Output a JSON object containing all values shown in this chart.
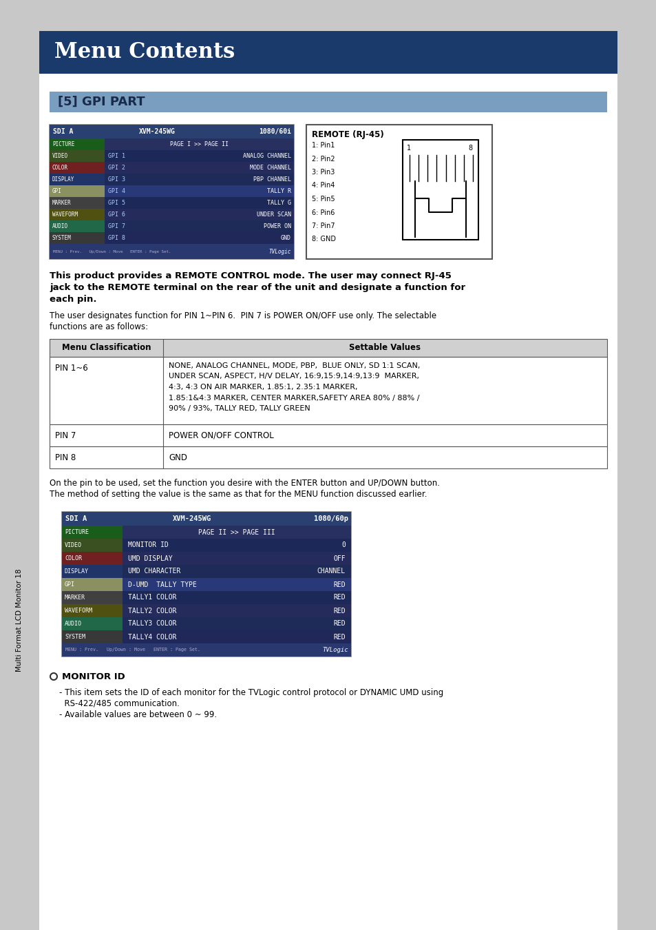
{
  "page_bg": "#c8c8c8",
  "content_bg": "#ffffff",
  "header_bg": "#1a3a6b",
  "header_text": "Menu Contents",
  "header_text_color": "#ffffff",
  "section_bg": "#7a9ec0",
  "section_text": "[5] GPI PART",
  "section_text_color": "#1a2a4a",
  "sidebar_text": "Multi Format LCD Monitor 18",
  "bold_para_line1": "This product provides a REMOTE CONTROL mode. The user may connect RJ-45",
  "bold_para_line2": "jack to the REMOTE terminal on the rear of the unit and designate a function for",
  "bold_para_line3": "each pin.",
  "normal_para1_line1": "The user designates function for PIN 1~PIN 6.  PIN 7 is POWER ON/OFF use only. The selectable",
  "normal_para1_line2": "functions are as follows:",
  "normal_para2_line1": "On the pin to be used, set the function you desire with the ENTER button and UP/DOWN button.",
  "normal_para2_line2": "The method of setting the value is the same as that for the MENU function discussed earlier.",
  "bullet_title": "MONITOR ID",
  "bullet_line1": "- This item sets the ID of each monitor for the TVLogic control protocol or DYNAMIC UMD using",
  "bullet_line2": "  RS-422/485 communication.",
  "bullet_line3": "- Available values are between 0 ~ 99.",
  "table_header": [
    "Menu Classification",
    "Settable Values"
  ],
  "table_row1_col1": "PIN 1~6",
  "table_row1_col2_lines": [
    "NONE, ANALOG CHANNEL, MODE, PBP,  BLUE ONLY, SD 1:1 SCAN,",
    "UNDER SCAN, ASPECT, H/V DELAY, 16:9,15:9,14:9,13:9  MARKER,",
    "4:3, 4:3 ON AIR MARKER, 1.85:1, 2.35:1 MARKER,",
    "1.85:1&4:3 MARKER, CENTER MARKER,SAFETY AREA 80% / 88% /",
    "90% / 93%, TALLY RED, TALLY GREEN"
  ],
  "table_row2_col1": "PIN 7",
  "table_row2_col2": "POWER ON/OFF CONTROL",
  "table_row3_col1": "PIN 8",
  "table_row3_col2": "GND",
  "remote_label": "REMOTE (RJ-45)",
  "remote_pins": [
    "1: Pin1",
    "2: Pin2",
    "3: Pin3",
    "4: Pin4",
    "5: Pin5",
    "6: Pin6",
    "7: Pin7",
    "8: GND"
  ],
  "scr1_sidebar_labels": [
    "PICTURE",
    "VIDEO",
    "COLOR",
    "DISPLAY",
    "GPI",
    "MARKER",
    "WAVEFORM",
    "AUDIO",
    "SYSTEM"
  ],
  "scr1_sidebar_colors": [
    "#1a5c1a",
    "#3a5020",
    "#702020",
    "#203468",
    "#556010",
    "#404040",
    "#505010",
    "#206848",
    "#383838"
  ],
  "scr1_gpi_labels": [
    "",
    "GPI 1",
    "GPI 2",
    "GPI 3",
    "GPI 4",
    "GPI 5",
    "GPI 6",
    "GPI 7",
    "GPI 8"
  ],
  "scr1_gpi_values": [
    "PAGE I >> PAGE II",
    "ANALOG CHANNEL",
    "MODE CHANNEL",
    "PBP CHANNEL",
    "TALLY R",
    "TALLY G",
    "UNDER SCAN",
    "POWER ON",
    "GND"
  ],
  "scr1_row_bgs": [
    "#283060",
    "#1c2858",
    "#252c5c",
    "#1e2a58",
    "#283878",
    "#1c2858",
    "#252c5c",
    "#1e2a58",
    "#20285a"
  ],
  "scr2_sidebar_labels": [
    "PICTURE",
    "VIDEO",
    "COLOR",
    "DISPLAY",
    "GPI",
    "MARKER",
    "WAVEFORM",
    "AUDIO",
    "SYSTEM"
  ],
  "scr2_sidebar_colors": [
    "#1a5c1a",
    "#3a5020",
    "#702020",
    "#203468",
    "#556010",
    "#404040",
    "#505010",
    "#206848",
    "#383838"
  ],
  "scr2_items": [
    [
      "PAGE II >> PAGE III",
      ""
    ],
    [
      "MONITOR ID",
      "0"
    ],
    [
      "UMD DISPLAY",
      "OFF"
    ],
    [
      "UMD CHARACTER",
      "CHANNEL"
    ],
    [
      "D-UMD  TALLY TYPE",
      "RED"
    ],
    [
      "TALLY1 COLOR",
      "RED"
    ],
    [
      "TALLY2 COLOR",
      "RED"
    ],
    [
      "TALLY3 COLOR",
      "RED"
    ],
    [
      "TALLY4 COLOR",
      "RED"
    ]
  ],
  "scr2_row_bgs": [
    "#283060",
    "#1c2858",
    "#252c5c",
    "#1e2a58",
    "#283878",
    "#1c2858",
    "#252c5c",
    "#1e2a58",
    "#20285a"
  ]
}
